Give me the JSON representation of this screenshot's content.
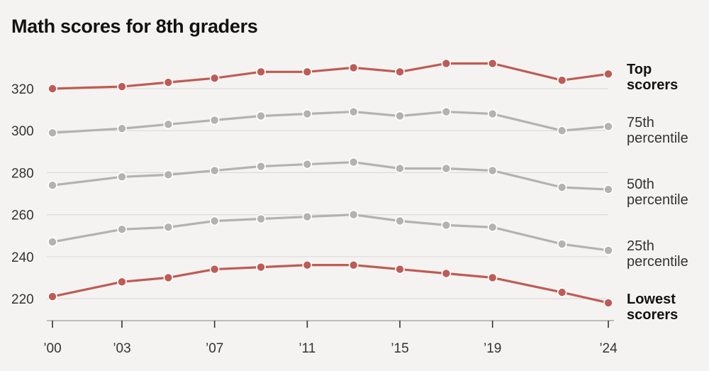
{
  "chart_data": {
    "type": "line",
    "title": "Math scores for 8th graders",
    "xlabel": "",
    "ylabel": "",
    "x": [
      2000,
      2003,
      2005,
      2007,
      2009,
      2011,
      2013,
      2015,
      2017,
      2019,
      2022,
      2024
    ],
    "x_ticks": [
      {
        "year": 2000,
        "label": "’00"
      },
      {
        "year": 2003,
        "label": "’03"
      },
      {
        "year": 2007,
        "label": "’07"
      },
      {
        "year": 2011,
        "label": "’11"
      },
      {
        "year": 2015,
        "label": "’15"
      },
      {
        "year": 2019,
        "label": "’19"
      },
      {
        "year": 2024,
        "label": "’24"
      }
    ],
    "y_ticks": [
      220,
      240,
      260,
      280,
      300,
      320
    ],
    "ylim": [
      210,
      333
    ],
    "grid": true,
    "series": [
      {
        "name": "Top scorers",
        "label_lines": [
          "Top",
          "scorers"
        ],
        "bold": true,
        "color": "#bf5b55",
        "values": [
          320,
          321,
          323,
          325,
          328,
          328,
          330,
          328,
          332,
          332,
          324,
          327
        ]
      },
      {
        "name": "75th percentile",
        "label_lines": [
          "75th",
          "percentile"
        ],
        "bold": false,
        "color": "#b2b2b2",
        "values": [
          299,
          301,
          303,
          305,
          307,
          308,
          309,
          307,
          309,
          308,
          300,
          302
        ]
      },
      {
        "name": "50th percentile",
        "label_lines": [
          "50th",
          "percentile"
        ],
        "bold": false,
        "color": "#b2b2b2",
        "values": [
          274,
          278,
          279,
          281,
          283,
          284,
          285,
          282,
          282,
          281,
          273,
          272
        ]
      },
      {
        "name": "25th percentile",
        "label_lines": [
          "25th",
          "percentile"
        ],
        "bold": false,
        "color": "#b2b2b2",
        "values": [
          247,
          253,
          254,
          257,
          258,
          259,
          260,
          257,
          255,
          254,
          246,
          243
        ]
      },
      {
        "name": "Lowest scorers",
        "label_lines": [
          "Lowest",
          "scorers"
        ],
        "bold": true,
        "color": "#bf5b55",
        "values": [
          221,
          228,
          230,
          234,
          235,
          236,
          236,
          234,
          232,
          230,
          223,
          218
        ]
      }
    ]
  }
}
